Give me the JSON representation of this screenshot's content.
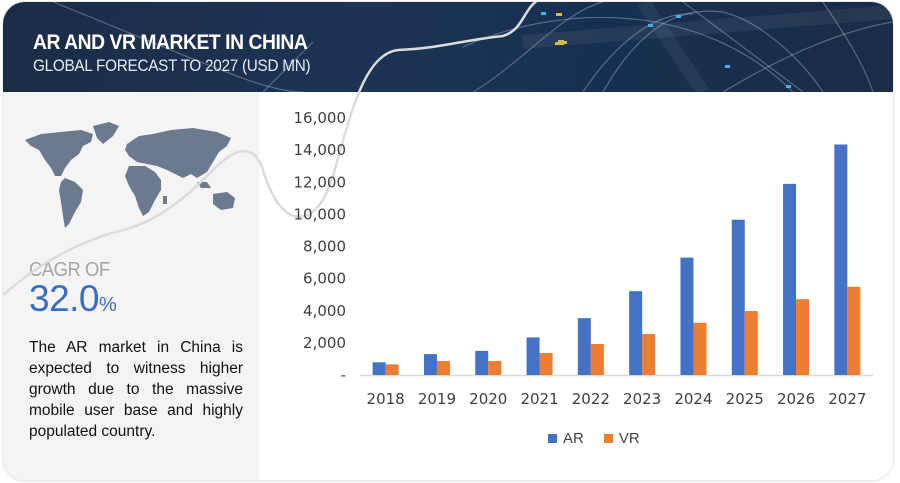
{
  "header": {
    "title": "AR AND VR MARKET IN CHINA",
    "subtitle": "GLOBAL FORECAST TO 2027 (USD MN)"
  },
  "sidebar": {
    "map_icon": "world-map-icon",
    "cagr_label": "CAGR OF",
    "cagr_value": "32.0",
    "cagr_unit": "%",
    "description": "The AR market in China is expected to witness higher growth due to the massive mobile user base and highly populated country."
  },
  "colors": {
    "banner": "#1b2d45",
    "accent_blue": "#3b6cc4",
    "ar": "#4472c4",
    "vr": "#ed7d31",
    "panel": "#f4f4f4"
  },
  "chart_data": {
    "type": "bar",
    "title": "AR AND VR MARKET IN CHINA",
    "subtitle": "GLOBAL FORECAST TO 2027 (USD MN)",
    "xlabel": "",
    "ylabel": "",
    "categories": [
      "2018",
      "2019",
      "2020",
      "2021",
      "2022",
      "2023",
      "2024",
      "2025",
      "2026",
      "2027"
    ],
    "series": [
      {
        "name": "AR",
        "color": "#4472c4",
        "values": [
          790,
          1300,
          1500,
          2340,
          3540,
          5220,
          7310,
          9670,
          11900,
          14350
        ]
      },
      {
        "name": "VR",
        "color": "#ed7d31",
        "values": [
          660,
          870,
          870,
          1370,
          1930,
          2550,
          3250,
          3980,
          4720,
          5490
        ]
      }
    ],
    "ylim": [
      0,
      16000
    ],
    "yticks": [
      "-",
      "2,000",
      "4,000",
      "6,000",
      "8,000",
      "10,000",
      "12,000",
      "14,000",
      "16,000"
    ],
    "grid": false,
    "legend": "bottom-center"
  }
}
